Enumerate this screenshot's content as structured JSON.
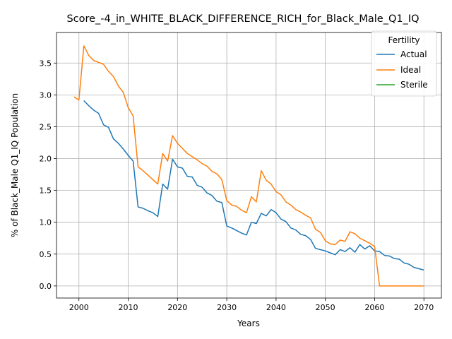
{
  "chart_data": {
    "type": "line",
    "title": "Score_-4_in_WHITE_BLACK_DIFFERENCE_RICH_for_Black_Male_Q1_IQ",
    "xlabel": "Years",
    "ylabel": "% of Black_Male Q1_IQ Population",
    "xlim": [
      1995.45,
      2073.55
    ],
    "ylim": [
      -0.19,
      3.98
    ],
    "xticks": [
      2000,
      2010,
      2020,
      2030,
      2040,
      2050,
      2060,
      2070
    ],
    "xtick_labels": [
      "2000",
      "2010",
      "2020",
      "2030",
      "2040",
      "2050",
      "2060",
      "2070"
    ],
    "yticks": [
      0.0,
      0.5,
      1.0,
      1.5,
      2.0,
      2.5,
      3.0,
      3.5
    ],
    "ytick_labels": [
      "0.0",
      "0.5",
      "1.0",
      "1.5",
      "2.0",
      "2.5",
      "3.0",
      "3.5"
    ],
    "grid": true,
    "legend": {
      "title": "Fertility",
      "placement": "upper right"
    },
    "series": [
      {
        "name": "Actual",
        "color": "#1f77b4",
        "x": [
          2001,
          2002,
          2003,
          2004,
          2005,
          2006,
          2007,
          2008,
          2009,
          2010,
          2011,
          2012,
          2013,
          2014,
          2015,
          2016,
          2017,
          2018,
          2019,
          2020,
          2021,
          2022,
          2023,
          2024,
          2025,
          2026,
          2027,
          2028,
          2029,
          2030,
          2031,
          2032,
          2033,
          2034,
          2035,
          2036,
          2037,
          2038,
          2039,
          2040,
          2041,
          2042,
          2043,
          2044,
          2045,
          2046,
          2047,
          2048,
          2049,
          2050,
          2051,
          2052,
          2053,
          2054,
          2055,
          2056,
          2057,
          2058,
          2059,
          2060,
          2061,
          2062,
          2063,
          2064,
          2065,
          2066,
          2067,
          2068,
          2069,
          2070
        ],
        "y": [
          2.91,
          2.83,
          2.76,
          2.71,
          2.53,
          2.49,
          2.31,
          2.24,
          2.15,
          2.05,
          1.96,
          1.24,
          1.22,
          1.18,
          1.15,
          1.09,
          1.6,
          1.52,
          1.99,
          1.87,
          1.85,
          1.72,
          1.71,
          1.58,
          1.55,
          1.46,
          1.42,
          1.33,
          1.31,
          0.94,
          0.91,
          0.87,
          0.83,
          0.8,
          1.0,
          0.98,
          1.14,
          1.1,
          1.2,
          1.15,
          1.05,
          1.01,
          0.91,
          0.88,
          0.81,
          0.79,
          0.73,
          0.59,
          0.57,
          0.55,
          0.52,
          0.49,
          0.57,
          0.54,
          0.6,
          0.53,
          0.65,
          0.58,
          0.63,
          0.55,
          0.54,
          0.48,
          0.47,
          0.43,
          0.42,
          0.36,
          0.34,
          0.29,
          0.27,
          0.25
        ]
      },
      {
        "name": "Ideal",
        "color": "#ff7f0e",
        "x": [
          1999,
          2000,
          2001,
          2002,
          2003,
          2004,
          2005,
          2006,
          2007,
          2008,
          2009,
          2010,
          2011,
          2012,
          2013,
          2014,
          2015,
          2016,
          2017,
          2018,
          2019,
          2020,
          2021,
          2022,
          2023,
          2024,
          2025,
          2026,
          2027,
          2028,
          2029,
          2030,
          2031,
          2032,
          2033,
          2034,
          2035,
          2036,
          2037,
          2038,
          2039,
          2040,
          2041,
          2042,
          2043,
          2044,
          2045,
          2046,
          2047,
          2048,
          2049,
          2050,
          2051,
          2052,
          2053,
          2054,
          2055,
          2056,
          2057,
          2058,
          2059,
          2060,
          2061,
          2062,
          2063,
          2064,
          2065,
          2066,
          2067,
          2068,
          2069,
          2070
        ],
        "y": [
          2.97,
          2.92,
          3.77,
          3.62,
          3.54,
          3.51,
          3.48,
          3.37,
          3.29,
          3.14,
          3.04,
          2.8,
          2.67,
          1.87,
          1.81,
          1.74,
          1.67,
          1.6,
          2.08,
          1.96,
          2.36,
          2.24,
          2.16,
          2.08,
          2.03,
          1.98,
          1.92,
          1.88,
          1.8,
          1.76,
          1.67,
          1.34,
          1.27,
          1.25,
          1.19,
          1.15,
          1.4,
          1.32,
          1.81,
          1.66,
          1.6,
          1.48,
          1.43,
          1.32,
          1.27,
          1.2,
          1.16,
          1.11,
          1.07,
          0.89,
          0.84,
          0.71,
          0.66,
          0.65,
          0.72,
          0.7,
          0.85,
          0.82,
          0.75,
          0.71,
          0.67,
          0.62,
          0.0,
          0.0,
          0.0,
          0.0,
          0.0,
          0.0,
          0.0,
          0.0,
          0.0,
          0.0
        ]
      },
      {
        "name": "Sterile",
        "color": "#2ca02c",
        "x": [],
        "y": []
      }
    ]
  }
}
